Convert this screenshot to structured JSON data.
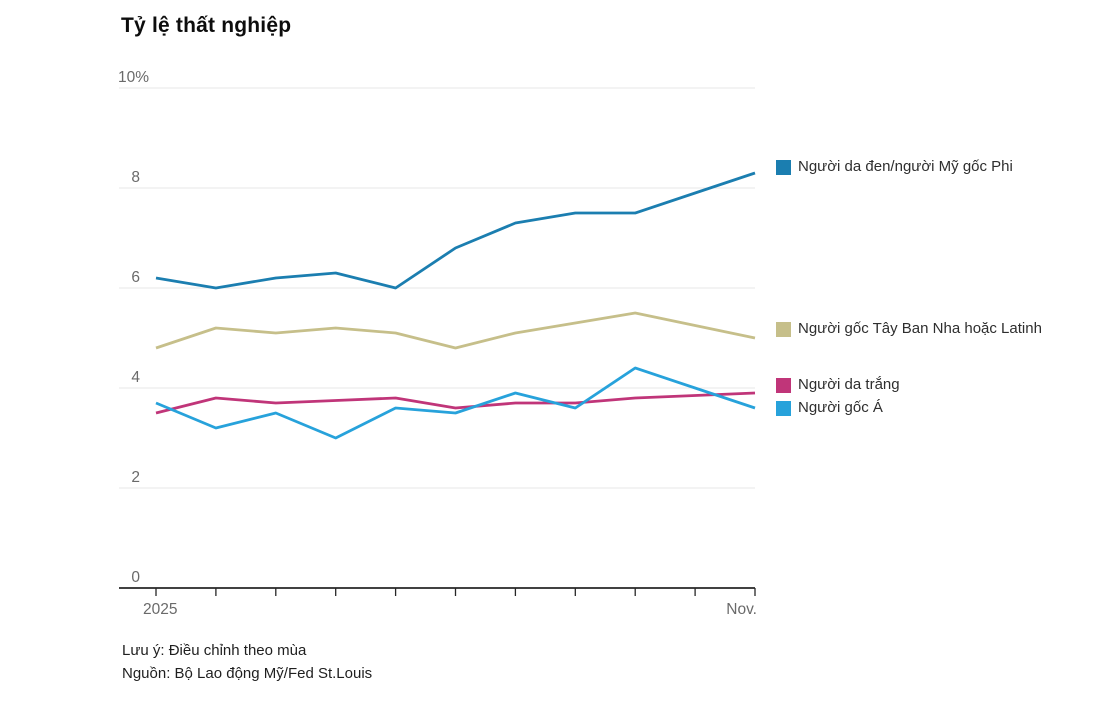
{
  "title": "Tỷ lệ thất nghiệp",
  "note": "Lưu ý: Điều chỉnh theo mùa",
  "source": "Nguồn: Bộ Lao động Mỹ/Fed St.Louis",
  "colors": {
    "black_african_american": "#1b7eb0",
    "hispanic_latino": "#c6bf8a",
    "white": "#c03579",
    "asian": "#27a2db",
    "gridline": "#e7e7e7",
    "axis": "#262626",
    "axis_label": "#6a6a6a",
    "legend_text": "#2e2e2e",
    "background": "#ffffff"
  },
  "chart_data": {
    "type": "line",
    "x_point_count": 11,
    "xtick_labels": [
      "2025",
      "Nov."
    ],
    "ylim": [
      0,
      10
    ],
    "yticks": [
      10,
      8,
      6,
      4,
      2,
      0
    ],
    "ytick_labels": [
      "10%",
      "8",
      "6",
      "4",
      "2",
      "0"
    ],
    "grid": "horizontal",
    "legend_position": "right",
    "series": [
      {
        "name": "Người da đen/người Mỹ gốc Phi",
        "color": "#1b7eb0",
        "values": [
          6.2,
          6.0,
          6.2,
          6.3,
          6.0,
          6.8,
          7.3,
          7.5,
          7.5,
          7.9,
          8.3
        ]
      },
      {
        "name": "Người gốc Tây Ban Nha hoặc Latinh",
        "color": "#c6bf8a",
        "values": [
          4.8,
          5.2,
          5.1,
          5.2,
          5.1,
          4.8,
          5.1,
          5.3,
          5.5,
          5.25,
          5.0
        ]
      },
      {
        "name": "Người da trắng",
        "color": "#c03579",
        "values": [
          3.5,
          3.8,
          3.7,
          3.75,
          3.8,
          3.6,
          3.7,
          3.7,
          3.8,
          3.85,
          3.9
        ]
      },
      {
        "name": "Người gốc Á",
        "color": "#27a2db",
        "values": [
          3.7,
          3.2,
          3.5,
          3.0,
          3.6,
          3.5,
          3.9,
          3.6,
          4.4,
          4.0,
          3.6
        ]
      }
    ]
  }
}
